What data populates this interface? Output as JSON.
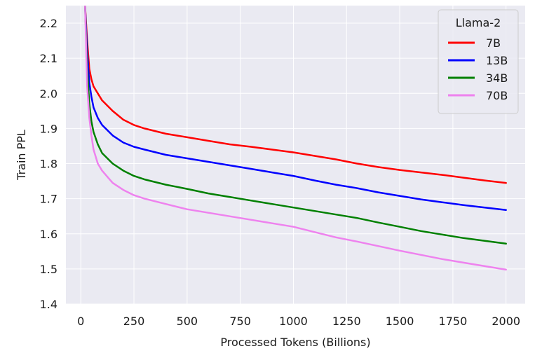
{
  "chart_data": {
    "type": "line",
    "xlabel": "Processed Tokens (Billions)",
    "ylabel": "Train PPL",
    "xlim": [
      -70,
      2090
    ],
    "ylim": [
      1.4,
      2.25
    ],
    "xticks": [
      0,
      250,
      500,
      750,
      1000,
      1250,
      1500,
      1750,
      2000
    ],
    "yticks": [
      1.4,
      1.5,
      1.6,
      1.7,
      1.8,
      1.9,
      2.0,
      2.1,
      2.2
    ],
    "grid": true,
    "legend": {
      "title": "Llama-2",
      "placement": "top-right"
    },
    "series": [
      {
        "name": "7B",
        "color": "#ff0000",
        "x": [
          20,
          30,
          40,
          50,
          60,
          80,
          100,
          150,
          200,
          250,
          300,
          400,
          500,
          600,
          700,
          800,
          900,
          1000,
          1100,
          1200,
          1300,
          1400,
          1500,
          1600,
          1700,
          1800,
          1900,
          2000
        ],
        "y": [
          2.25,
          2.15,
          2.07,
          2.04,
          2.02,
          2.0,
          1.98,
          1.95,
          1.925,
          1.91,
          1.9,
          1.885,
          1.875,
          1.865,
          1.855,
          1.848,
          1.84,
          1.832,
          1.822,
          1.812,
          1.8,
          1.79,
          1.782,
          1.775,
          1.768,
          1.76,
          1.752,
          1.745
        ]
      },
      {
        "name": "13B",
        "color": "#0000ff",
        "x": [
          20,
          30,
          40,
          50,
          60,
          80,
          100,
          150,
          200,
          250,
          300,
          400,
          500,
          600,
          700,
          800,
          900,
          1000,
          1100,
          1200,
          1300,
          1400,
          1500,
          1600,
          1700,
          1800,
          1900,
          2000
        ],
        "y": [
          2.25,
          2.12,
          2.03,
          1.99,
          1.96,
          1.93,
          1.91,
          1.88,
          1.86,
          1.848,
          1.84,
          1.825,
          1.815,
          1.805,
          1.795,
          1.785,
          1.775,
          1.765,
          1.752,
          1.74,
          1.73,
          1.718,
          1.708,
          1.698,
          1.69,
          1.682,
          1.675,
          1.668
        ]
      },
      {
        "name": "34B",
        "color": "#008000",
        "x": [
          20,
          30,
          40,
          50,
          60,
          80,
          100,
          150,
          200,
          250,
          300,
          400,
          500,
          600,
          700,
          800,
          900,
          1000,
          1100,
          1200,
          1300,
          1400,
          1500,
          1600,
          1700,
          1800,
          1900,
          2000
        ],
        "y": [
          2.25,
          2.07,
          1.97,
          1.92,
          1.89,
          1.855,
          1.83,
          1.8,
          1.78,
          1.765,
          1.755,
          1.74,
          1.728,
          1.715,
          1.705,
          1.695,
          1.685,
          1.675,
          1.665,
          1.655,
          1.645,
          1.632,
          1.62,
          1.608,
          1.598,
          1.588,
          1.58,
          1.572
        ]
      },
      {
        "name": "70B",
        "color": "#ee82ee",
        "x": [
          20,
          30,
          40,
          50,
          60,
          80,
          100,
          150,
          200,
          250,
          300,
          400,
          500,
          600,
          700,
          800,
          900,
          1000,
          1100,
          1200,
          1300,
          1400,
          1500,
          1600,
          1700,
          1800,
          1900,
          2000
        ],
        "y": [
          2.25,
          2.02,
          1.93,
          1.88,
          1.84,
          1.8,
          1.78,
          1.745,
          1.725,
          1.71,
          1.7,
          1.685,
          1.67,
          1.66,
          1.65,
          1.64,
          1.63,
          1.62,
          1.605,
          1.59,
          1.578,
          1.565,
          1.552,
          1.54,
          1.528,
          1.518,
          1.508,
          1.498
        ]
      }
    ]
  }
}
